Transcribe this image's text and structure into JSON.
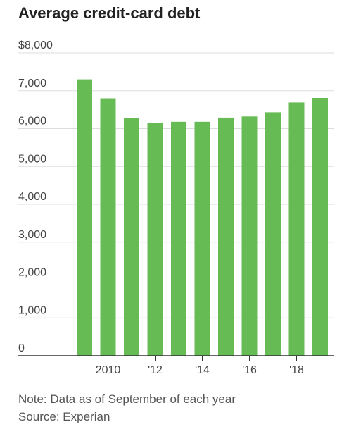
{
  "title": "Average credit-card debt",
  "notes": {
    "note": "Note: Data as of September of each year",
    "source": "Source: Experian"
  },
  "colors": {
    "bar": "#66bb55",
    "grid": "#dddddd",
    "axis": "#333333"
  },
  "chart_data": {
    "type": "bar",
    "title": "Average credit-card debt",
    "xlabel": "",
    "ylabel": "",
    "x": [
      2009,
      2010,
      2011,
      2012,
      2013,
      2014,
      2015,
      2016,
      2017,
      2018,
      2019
    ],
    "values": [
      7300,
      6800,
      6270,
      6150,
      6180,
      6180,
      6290,
      6320,
      6430,
      6690,
      6810
    ],
    "ylim": [
      0,
      8000
    ],
    "yticks": [
      0,
      1000,
      2000,
      3000,
      4000,
      5000,
      6000,
      7000,
      8000
    ],
    "ytick_labels": [
      "0",
      "1,000",
      "2,000",
      "3,000",
      "4,000",
      "5,000",
      "6,000",
      "7,000",
      "$8,000"
    ],
    "xtick_labels": [
      {
        "x": 2010,
        "label": "2010"
      },
      {
        "x": 2012,
        "label": "'12"
      },
      {
        "x": 2014,
        "label": "'14"
      },
      {
        "x": 2016,
        "label": "'16"
      },
      {
        "x": 2018,
        "label": "'18"
      }
    ],
    "grid": true
  }
}
